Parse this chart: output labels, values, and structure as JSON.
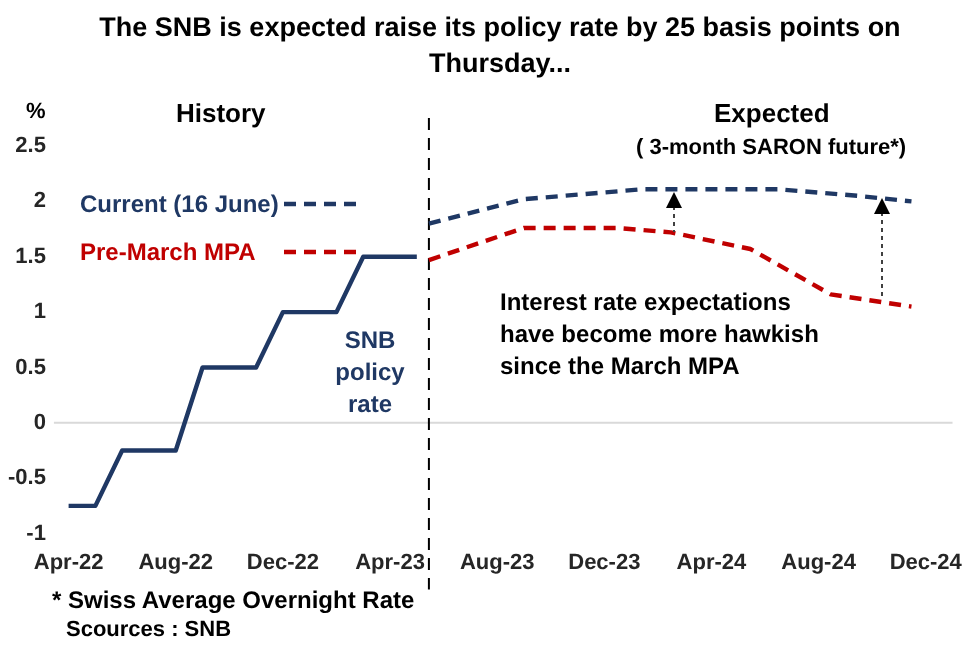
{
  "chart_data": {
    "type": "line",
    "title": "The SNB is expected raise its policy rate by 25 basis points on Thursday...",
    "ylabel": "%",
    "annotations": [
      "History",
      "Expected",
      "( 3-month SARON future*)",
      "Interest rate expectations have become more hawkish since the March MPA",
      "* Swiss Average Overnight Rate",
      "Scources : SNB"
    ],
    "series": [
      {
        "name": "SNB policy rate",
        "color": "#1f3864",
        "line_style": "solid",
        "x": [
          "2022-04",
          "2022-05",
          "2022-06",
          "2022-07",
          "2022-08",
          "2022-09",
          "2022-10",
          "2022-11",
          "2022-12",
          "2023-01",
          "2023-02",
          "2023-03",
          "2023-04",
          "2023-05"
        ],
        "values": [
          -0.75,
          -0.75,
          -0.25,
          -0.25,
          -0.25,
          0.5,
          0.5,
          0.5,
          1,
          1,
          1,
          1.5,
          1.5,
          1.5
        ]
      },
      {
        "name": "Current (16 June)",
        "color": "#1f3864",
        "line_style": "dashed",
        "x": [
          "2023-05-15",
          "2023-09",
          "2024-01-15",
          "2024-06-15",
          "2024-09-15",
          "2024-11-15"
        ],
        "values": [
          1.8,
          2.02,
          2.11,
          2.11,
          2.05,
          2.0
        ]
      },
      {
        "name": "Pre-March MPA",
        "color": "#c00000",
        "line_style": "dashed",
        "x": [
          "2023-05-15",
          "2023-09",
          "2023-12-15",
          "2024-02-15",
          "2024-05-15",
          "2024-08-15",
          "2024-11-15"
        ],
        "values": [
          1.47,
          1.76,
          1.76,
          1.72,
          1.57,
          1.16,
          1.05
        ]
      }
    ],
    "xlim": [
      "2022-03-15",
      "2025-01"
    ],
    "xticks": [
      {
        "value": "2022-04",
        "label": "Apr-22"
      },
      {
        "value": "2022-08",
        "label": "Aug-22"
      },
      {
        "value": "2022-12",
        "label": "Dec-22"
      },
      {
        "value": "2023-04",
        "label": "Apr-23"
      },
      {
        "value": "2023-08",
        "label": "Aug-23"
      },
      {
        "value": "2023-12",
        "label": "Dec-23"
      },
      {
        "value": "2024-04",
        "label": "Apr-24"
      },
      {
        "value": "2024-08",
        "label": "Aug-24"
      },
      {
        "value": "2024-12",
        "label": "Dec-24"
      }
    ],
    "ylim": [
      -1,
      2.5
    ],
    "yticks": [
      -1,
      -0.5,
      0,
      0.5,
      1,
      1.5,
      2,
      2.5
    ],
    "ref_lines": [
      {
        "axis": "y",
        "value": 0,
        "color": "#d9d9d9",
        "line_style": "solid"
      },
      {
        "axis": "x",
        "value": "2023-05-15",
        "color": "#000000",
        "line_style": "dashed"
      }
    ],
    "grid": false,
    "legend": "top left",
    "marker": "none"
  }
}
